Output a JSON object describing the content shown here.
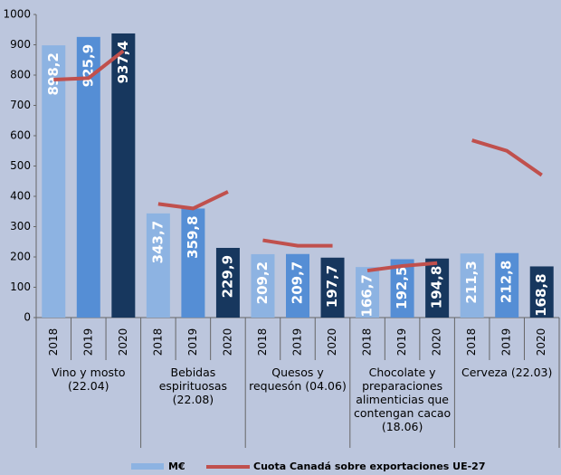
{
  "chart_data": {
    "type": "bar",
    "categories": [
      "2018",
      "2019",
      "2020",
      "2018",
      "2019",
      "2020",
      "2018",
      "2019",
      "2020",
      "2018",
      "2019",
      "2020",
      "2018",
      "2019",
      "2020"
    ],
    "groups": [
      "Vino y mosto\n(22.04)",
      "Bebidas\nespirituosas\n(22.08)",
      "Quesos y\nrequesón (04.06)",
      "Chocolate y\npreparaciones\nalimenticias que\ncontengan cacao\n(18.06)",
      "Cerveza (22.03)"
    ],
    "series": [
      {
        "name": "M€",
        "type": "bar",
        "colors": [
          "#8db3e2",
          "#558ed5",
          "#17375e",
          "#8db3e2",
          "#558ed5",
          "#17375e",
          "#8db3e2",
          "#558ed5",
          "#17375e",
          "#8db3e2",
          "#558ed5",
          "#17375e",
          "#8db3e2",
          "#558ed5",
          "#17375e"
        ],
        "values": [
          898.2,
          925.9,
          937.4,
          343.7,
          359.8,
          229.9,
          209.2,
          209.7,
          197.7,
          166.7,
          192.5,
          194.8,
          211.3,
          212.8,
          168.8
        ],
        "value_labels": [
          "898,2",
          "925,9",
          "937,4",
          "343,7",
          "359,8",
          "229,9",
          "209,2",
          "209,7",
          "197,7",
          "166,7",
          "192,5",
          "194,8",
          "211,3",
          "212,8",
          "168,8"
        ]
      },
      {
        "name": "Cuota Canadá sobre exportaciones UE-27",
        "type": "line",
        "color": "#c0504d",
        "values": [
          785,
          790,
          880,
          375,
          360,
          415,
          255,
          237,
          237,
          155,
          170,
          180,
          585,
          550,
          470
        ]
      }
    ],
    "ylim": [
      0,
      1000
    ],
    "yticks": [
      0,
      100,
      200,
      300,
      400,
      500,
      600,
      700,
      800,
      900,
      1000
    ],
    "grid": false
  }
}
